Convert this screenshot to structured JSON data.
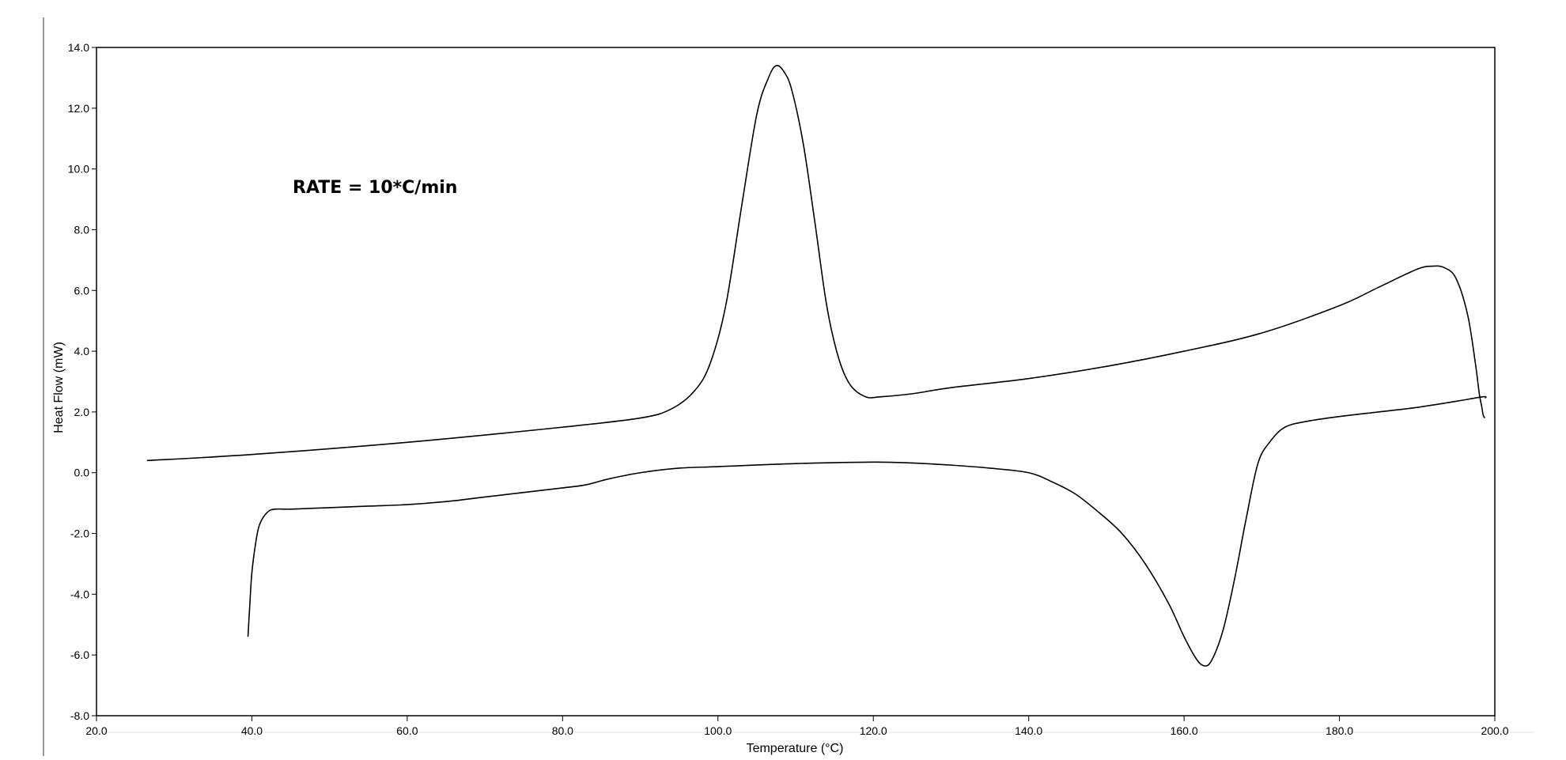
{
  "chart_data": {
    "type": "line",
    "title": "",
    "xlabel": "Temperature (°C)",
    "ylabel": "Heat Flow (mW)",
    "xlim": [
      20.0,
      200.0
    ],
    "ylim": [
      -8.0,
      14.0
    ],
    "x_ticks": [
      "20.0",
      "40.0",
      "60.0",
      "80.0",
      "100.0",
      "120.0",
      "140.0",
      "160.0",
      "180.0",
      "200.0"
    ],
    "y_ticks": [
      "14.0",
      "12.0",
      "10.0",
      "8.0",
      "6.0",
      "4.0",
      "2.0",
      "0.0",
      "-2.0",
      "-4.0",
      "-6.0",
      "-8.0"
    ],
    "grid": false,
    "annotation": "RATE = 10*C/min",
    "series": [
      {
        "x": [
          26.5,
          40,
          60,
          80,
          90,
          94,
          97,
          99,
          101,
          103,
          105,
          106.5,
          107.5,
          108.5,
          109.5,
          111,
          112.5,
          114,
          115.5,
          117,
          119,
          121,
          125,
          130,
          140,
          150,
          160,
          170,
          180,
          185,
          190,
          192,
          193.5,
          195,
          196.5,
          197.5,
          198,
          198.3,
          198.5,
          198.7
        ],
        "y": [
          0.4,
          0.6,
          1.0,
          1.5,
          1.8,
          2.1,
          2.7,
          3.6,
          5.5,
          8.7,
          11.8,
          13.0,
          13.4,
          13.2,
          12.6,
          10.8,
          8.2,
          5.5,
          3.8,
          2.9,
          2.5,
          2.5,
          2.6,
          2.8,
          3.1,
          3.5,
          4.0,
          4.6,
          5.5,
          6.1,
          6.7,
          6.8,
          6.75,
          6.4,
          5.2,
          3.6,
          2.6,
          2.2,
          1.9,
          1.8
        ]
      },
      {
        "x": [
          39.5,
          39.7,
          40.0,
          40.5,
          41.0,
          42.0,
          43.0,
          45.0,
          50,
          55,
          60,
          65,
          70,
          75,
          80,
          83,
          86,
          90,
          95,
          100,
          110,
          120,
          125,
          130,
          135,
          140,
          143,
          146,
          149,
          152,
          155,
          158,
          160,
          161.5,
          162.5,
          163.5,
          165,
          166.5,
          168,
          169.5,
          171,
          173,
          176,
          180,
          185,
          190,
          195,
          198.5,
          198.8
        ],
        "y": [
          -5.4,
          -4.5,
          -3.3,
          -2.3,
          -1.7,
          -1.3,
          -1.2,
          -1.2,
          -1.15,
          -1.1,
          -1.05,
          -0.95,
          -0.8,
          -0.65,
          -0.5,
          -0.4,
          -0.2,
          0.0,
          0.15,
          0.2,
          0.3,
          0.35,
          0.32,
          0.25,
          0.15,
          0.0,
          -0.3,
          -0.7,
          -1.3,
          -2.0,
          -3.0,
          -4.3,
          -5.4,
          -6.1,
          -6.35,
          -6.2,
          -5.2,
          -3.5,
          -1.5,
          0.3,
          1.0,
          1.5,
          1.7,
          1.85,
          2.0,
          2.15,
          2.35,
          2.5,
          2.45
        ]
      }
    ]
  }
}
